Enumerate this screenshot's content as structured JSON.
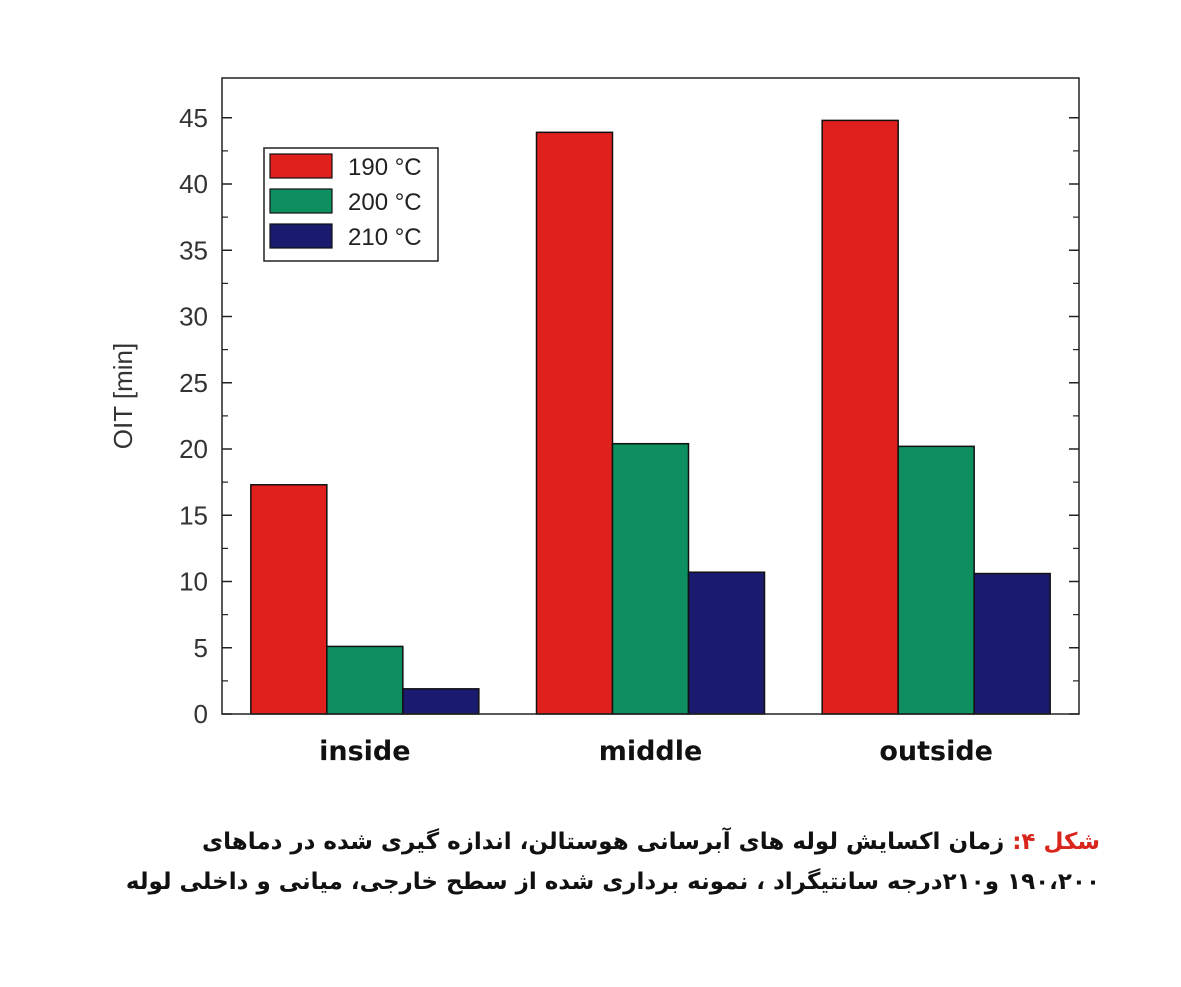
{
  "chart_data": {
    "type": "bar",
    "categories": [
      "inside",
      "middle",
      "outside"
    ],
    "series": [
      {
        "name": "190 °C",
        "color": "#e0201c",
        "values": [
          17.3,
          43.9,
          44.8
        ]
      },
      {
        "name": "200 °C",
        "color": "#0e8f5f",
        "values": [
          5.1,
          20.4,
          20.2
        ]
      },
      {
        "name": "210 °C",
        "color": "#1a1a6e",
        "values": [
          1.9,
          10.7,
          10.6
        ]
      }
    ],
    "title": "",
    "xlabel": "",
    "ylabel": "OIT [min]",
    "ylim": [
      0,
      48
    ],
    "yticks": [
      "0",
      "5",
      "10",
      "15",
      "20",
      "25",
      "30",
      "35",
      "40",
      "45"
    ],
    "grid": false,
    "legend_position": "top-left"
  },
  "caption": {
    "prefix": "شکل ۴:",
    "line1": " زمان اکسایش لوله های آبرسانی هوستالن، اندازه گیری شده در دماهای",
    "line2": "۱۹۰،۲۰۰ و۲۱۰درجه سانتیگراد ، نمونه برداری شده از سطح خارجی، میانی و داخلی لوله"
  }
}
